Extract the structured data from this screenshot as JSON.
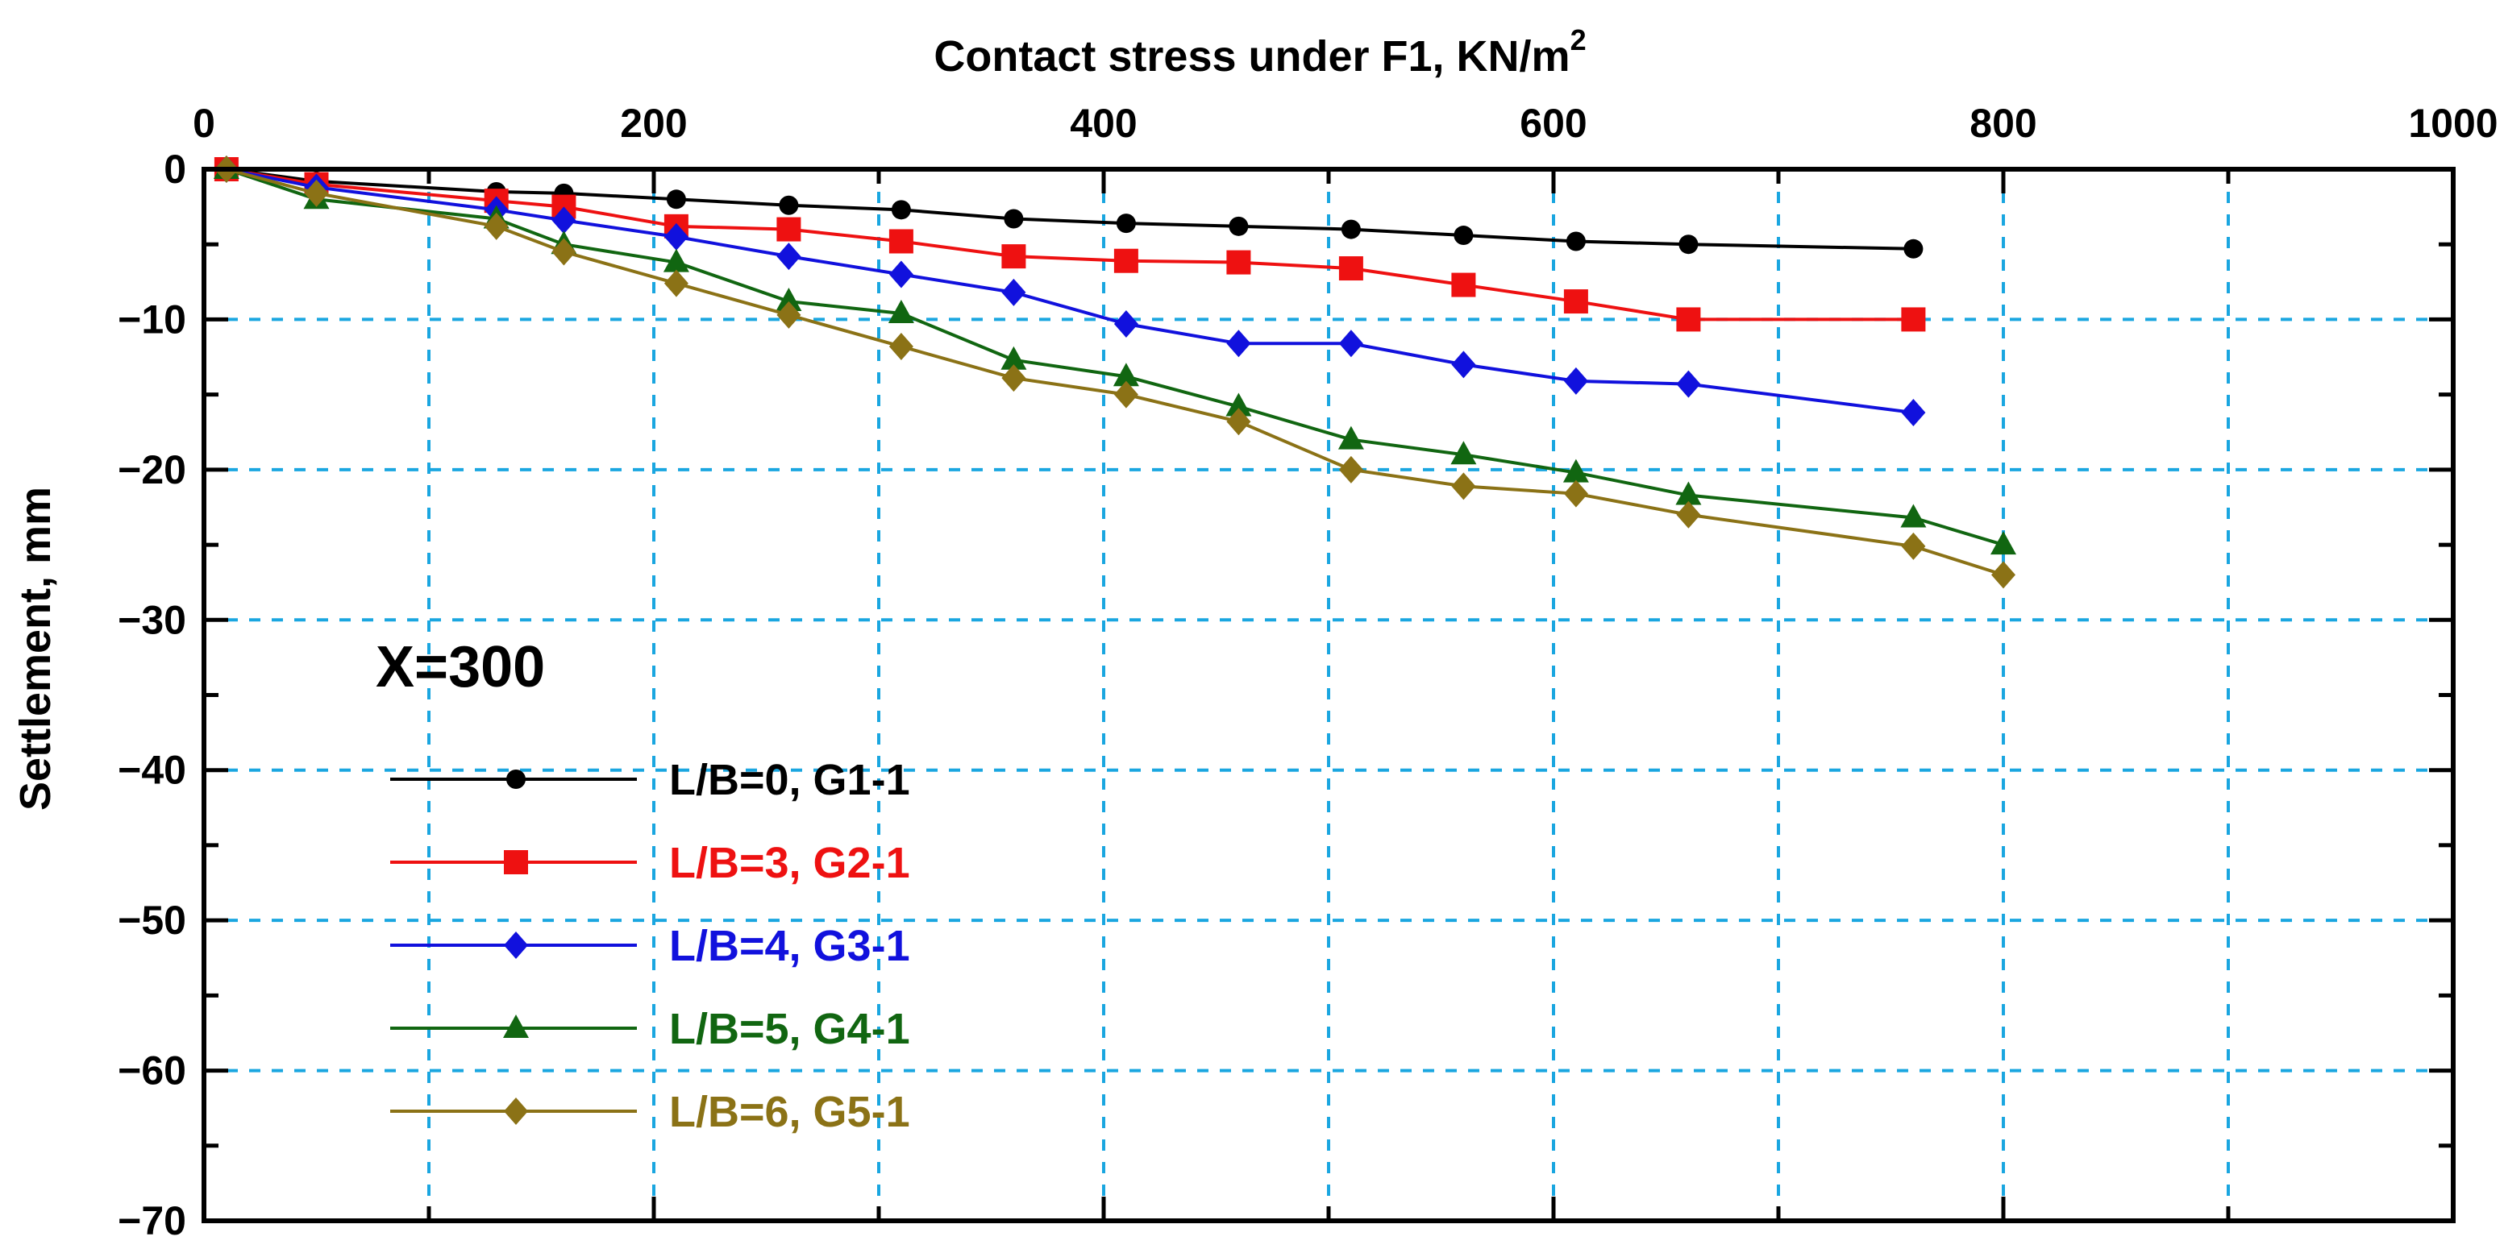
{
  "chart_data": {
    "type": "line",
    "title": "",
    "xlabel": "Contact  stress under F1, KN/m",
    "xlabel_superscript": "2",
    "ylabel": "Settlement, mm",
    "xlim": [
      0,
      1000
    ],
    "ylim": [
      -70,
      0
    ],
    "x_ticks": [
      "0",
      "200",
      "400",
      "600",
      "800",
      "1000"
    ],
    "y_ticks": [
      "0",
      "-10",
      "-20",
      "-30",
      "-40",
      "-50",
      "-60",
      "-70"
    ],
    "x_axis_position": "top",
    "grid": true,
    "annotation": "X=300",
    "legend_position": "bottom-left",
    "series": [
      {
        "name": "L/B=0, G1-1",
        "color": "#000000",
        "marker": "circle",
        "x": [
          10,
          50,
          130,
          160,
          210,
          260,
          310,
          360,
          410,
          460,
          510,
          560,
          610,
          660,
          760
        ],
        "y": [
          0,
          -0.8,
          -1.5,
          -1.6,
          -2.0,
          -2.4,
          -2.7,
          -3.3,
          -3.6,
          -3.8,
          -4.0,
          -4.4,
          -4.8,
          -5.0,
          -5.3
        ]
      },
      {
        "name": "L/B=3, G2-1",
        "color": "#ee1111",
        "marker": "square",
        "x": [
          10,
          50,
          130,
          160,
          210,
          260,
          310,
          360,
          410,
          460,
          510,
          560,
          610,
          660,
          760
        ],
        "y": [
          0,
          -1.0,
          -2.1,
          -2.5,
          -3.8,
          -4.0,
          -4.8,
          -5.8,
          -6.1,
          -6.2,
          -6.6,
          -7.7,
          -8.8,
          -10.0,
          -10.0
        ]
      },
      {
        "name": "L/B=4, G3-1",
        "color": "#1111dd",
        "marker": "diamond",
        "x": [
          10,
          50,
          130,
          160,
          210,
          260,
          310,
          360,
          410,
          460,
          510,
          560,
          610,
          660,
          760
        ],
        "y": [
          0,
          -1.2,
          -2.7,
          -3.4,
          -4.5,
          -5.8,
          -7.0,
          -8.2,
          -10.3,
          -11.6,
          -11.6,
          -13.0,
          -14.1,
          -14.3,
          -16.2
        ]
      },
      {
        "name": "L/B=5, G4-1",
        "color": "#116611",
        "marker": "triangle",
        "x": [
          10,
          50,
          130,
          160,
          210,
          260,
          310,
          360,
          410,
          460,
          510,
          560,
          610,
          660,
          760,
          800
        ],
        "y": [
          0,
          -2.0,
          -3.3,
          -5.0,
          -6.2,
          -8.8,
          -9.6,
          -12.7,
          -13.8,
          -15.8,
          -18.0,
          -19.0,
          -20.2,
          -21.7,
          -23.2,
          -25.0
        ]
      },
      {
        "name": "L/B=6, G5-1",
        "color": "#8b7216",
        "marker": "diamond",
        "x": [
          10,
          50,
          130,
          160,
          210,
          260,
          310,
          360,
          410,
          460,
          510,
          560,
          610,
          660,
          760,
          800
        ],
        "y": [
          0,
          -1.6,
          -3.8,
          -5.5,
          -7.6,
          -9.7,
          -11.8,
          -13.9,
          -15.0,
          -16.8,
          -20.0,
          -21.1,
          -21.6,
          -23.0,
          -25.1,
          -27.0
        ]
      }
    ]
  }
}
